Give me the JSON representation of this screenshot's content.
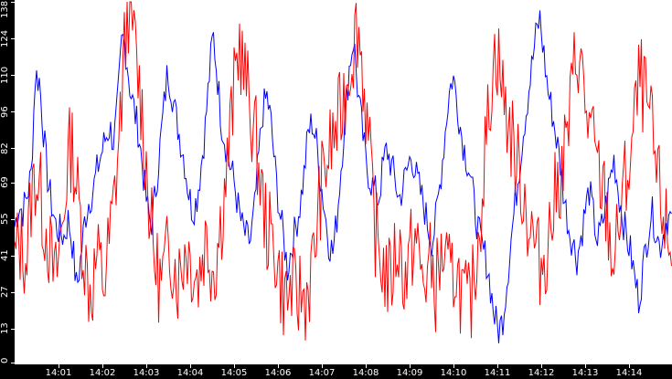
{
  "chart_data": {
    "type": "line",
    "title": "",
    "xlabel": "",
    "ylabel": "",
    "ylim": [
      0,
      138
    ],
    "yticks": [
      0,
      13,
      27,
      41,
      55,
      69,
      82,
      96,
      110,
      124,
      138
    ],
    "xticks": [
      "14:01",
      "14:02",
      "14:03",
      "14:04",
      "14:05",
      "14:06",
      "14:07",
      "14:08",
      "14:09",
      "14:10",
      "14:11",
      "14:12",
      "14:13",
      "14:14"
    ],
    "x_range": [
      "14:00",
      "14:15"
    ],
    "grid": false,
    "legend": null,
    "series": [
      {
        "name": "blue",
        "color": "#0000ff",
        "values": [
          52,
          60,
          58,
          64,
          72,
          110,
          108,
          88,
          70,
          60,
          52,
          50,
          48,
          55,
          45,
          28,
          40,
          55,
          62,
          66,
          74,
          80,
          86,
          90,
          84,
          100,
          125,
          118,
          104,
          96,
          88,
          74,
          60,
          52,
          64,
          80,
          96,
          112,
          104,
          94,
          86,
          78,
          66,
          58,
          62,
          74,
          88,
          108,
          126,
          110,
          92,
          84,
          76,
          70,
          60,
          52,
          48,
          46,
          58,
          78,
          96,
          102,
          92,
          74,
          59,
          48,
          36,
          44,
          52,
          60,
          72,
          88,
          92,
          84,
          70,
          58,
          46,
          42,
          56,
          76,
          96,
          114,
          124,
          104,
          90,
          76,
          70,
          66,
          62,
          74,
          82,
          76,
          70,
          62,
          68,
          74,
          80,
          72,
          66,
          60,
          52,
          46,
          56,
          70,
          86,
          102,
          110,
          100,
          88,
          80,
          74,
          62,
          52,
          44,
          40,
          30,
          18,
          12,
          16,
          30,
          46,
          60,
          74,
          88,
          100,
          112,
          124,
          132,
          118,
          104,
          96,
          86,
          76,
          62,
          52,
          46,
          40,
          48,
          58,
          66,
          56,
          46,
          52,
          60,
          70,
          78,
          66,
          56,
          48,
          42,
          32,
          24,
          36,
          48,
          58,
          52,
          44,
          50,
          56,
          54
        ]
      },
      {
        "name": "red",
        "color": "#ff0000",
        "values": [
          38,
          46,
          44,
          40,
          62,
          72,
          68,
          56,
          50,
          38,
          30,
          44,
          56,
          78,
          84,
          70,
          56,
          42,
          30,
          28,
          40,
          36,
          30,
          44,
          56,
          74,
          96,
          122,
          138,
          128,
          112,
          100,
          80,
          60,
          42,
          34,
          30,
          38,
          44,
          40,
          32,
          38,
          46,
          40,
          36,
          32,
          42,
          48,
          40,
          36,
          48,
          60,
          74,
          92,
          108,
          124,
          112,
          104,
          94,
          86,
          72,
          58,
          50,
          46,
          42,
          32,
          26,
          24,
          30,
          22,
          28,
          24,
          30,
          36,
          52,
          66,
          74,
          80,
          86,
          90,
          96,
          104,
          114,
          122,
          130,
          116,
          98,
          76,
          54,
          44,
          38,
          34,
          30,
          40,
          46,
          36,
          32,
          42,
          48,
          40,
          30,
          34,
          38,
          28,
          36,
          42,
          34,
          30,
          38,
          30,
          24,
          20,
          26,
          40,
          56,
          76,
          94,
          112,
          120,
          110,
          98,
          92,
          84,
          76,
          70,
          62,
          52,
          48,
          40,
          38,
          42,
          50,
          60,
          68,
          74,
          84,
          94,
          112,
          120,
          108,
          96,
          88,
          80,
          72,
          66,
          58,
          44,
          38,
          52,
          64,
          72,
          80,
          94,
          108,
          104,
          96,
          88,
          74,
          64,
          56,
          46,
          40
        ]
      }
    ]
  }
}
